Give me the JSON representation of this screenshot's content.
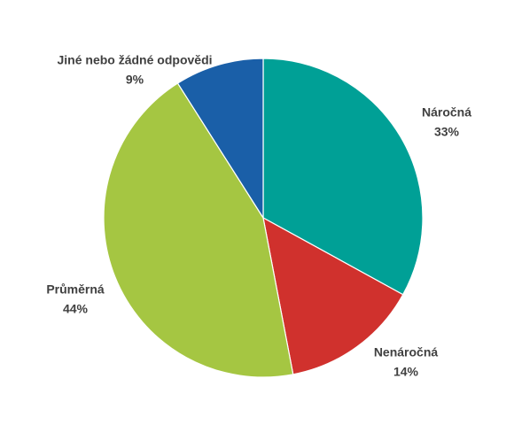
{
  "chart_data": {
    "type": "pie",
    "categories": [
      "Náročná",
      "Nenáročná",
      "Průměrná",
      "Jiné nebo žádné odpovědi"
    ],
    "values": [
      33,
      14,
      44,
      9
    ],
    "value_labels": [
      "33%",
      "14%",
      "44%",
      "9%"
    ],
    "colors": [
      "#00a096",
      "#d0312d",
      "#a5c642",
      "#1a5fa8"
    ]
  }
}
